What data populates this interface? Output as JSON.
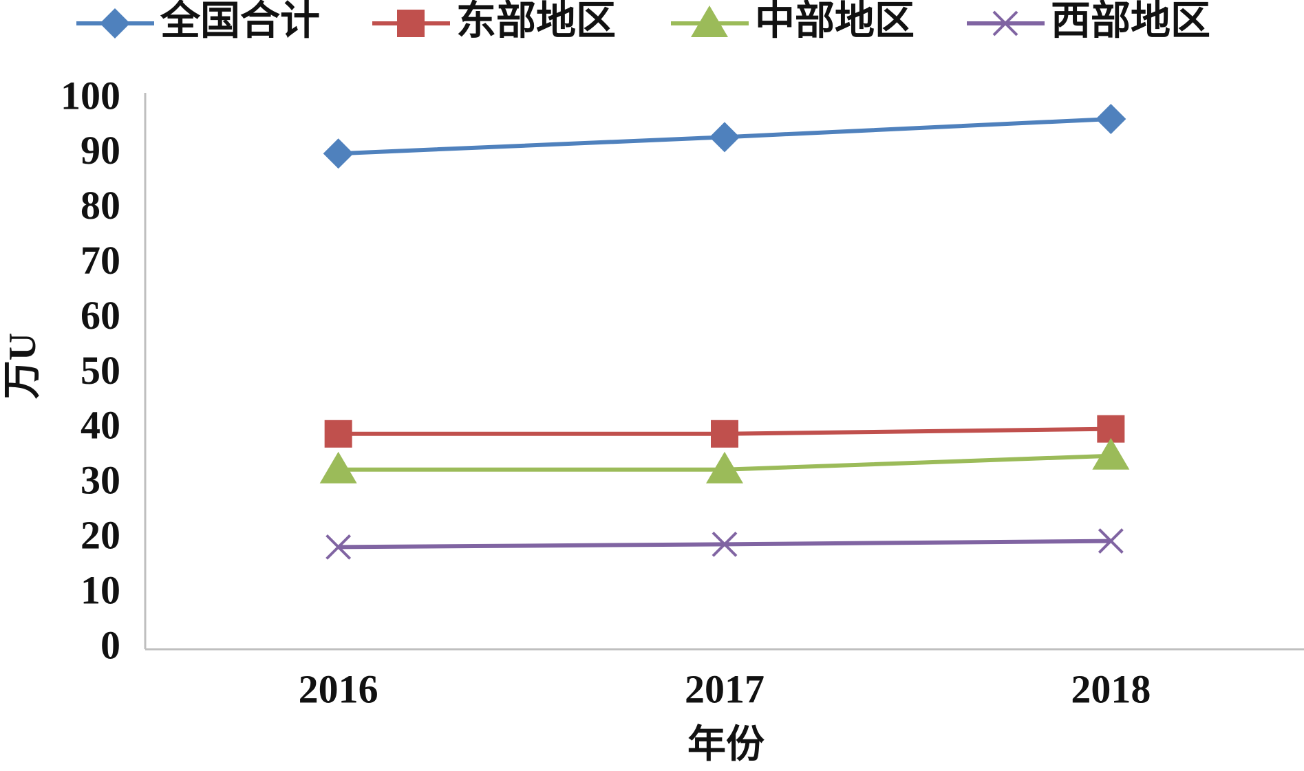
{
  "chart_data": {
    "type": "line",
    "categories": [
      "2016",
      "2017",
      "2018"
    ],
    "series": [
      {
        "name": "全国合计",
        "color": "#4f81bd",
        "marker": "diamond",
        "values": [
          90.2,
          93.2,
          96.5
        ]
      },
      {
        "name": "东部地区",
        "color": "#c0504d",
        "marker": "square",
        "values": [
          39.2,
          39.2,
          40.1
        ]
      },
      {
        "name": "中部地区",
        "color": "#9bbb59",
        "marker": "triangle",
        "values": [
          32.7,
          32.7,
          35.2
        ]
      },
      {
        "name": "西部地区",
        "color": "#8064a2",
        "marker": "x",
        "values": [
          18.6,
          19.1,
          19.7
        ]
      }
    ],
    "x_label": "年份",
    "y_label": "万U",
    "ylim": [
      0,
      100
    ],
    "yticks": [
      0,
      10,
      20,
      30,
      40,
      50,
      60,
      70,
      80,
      90,
      100
    ],
    "grid": false,
    "legend": "top"
  }
}
